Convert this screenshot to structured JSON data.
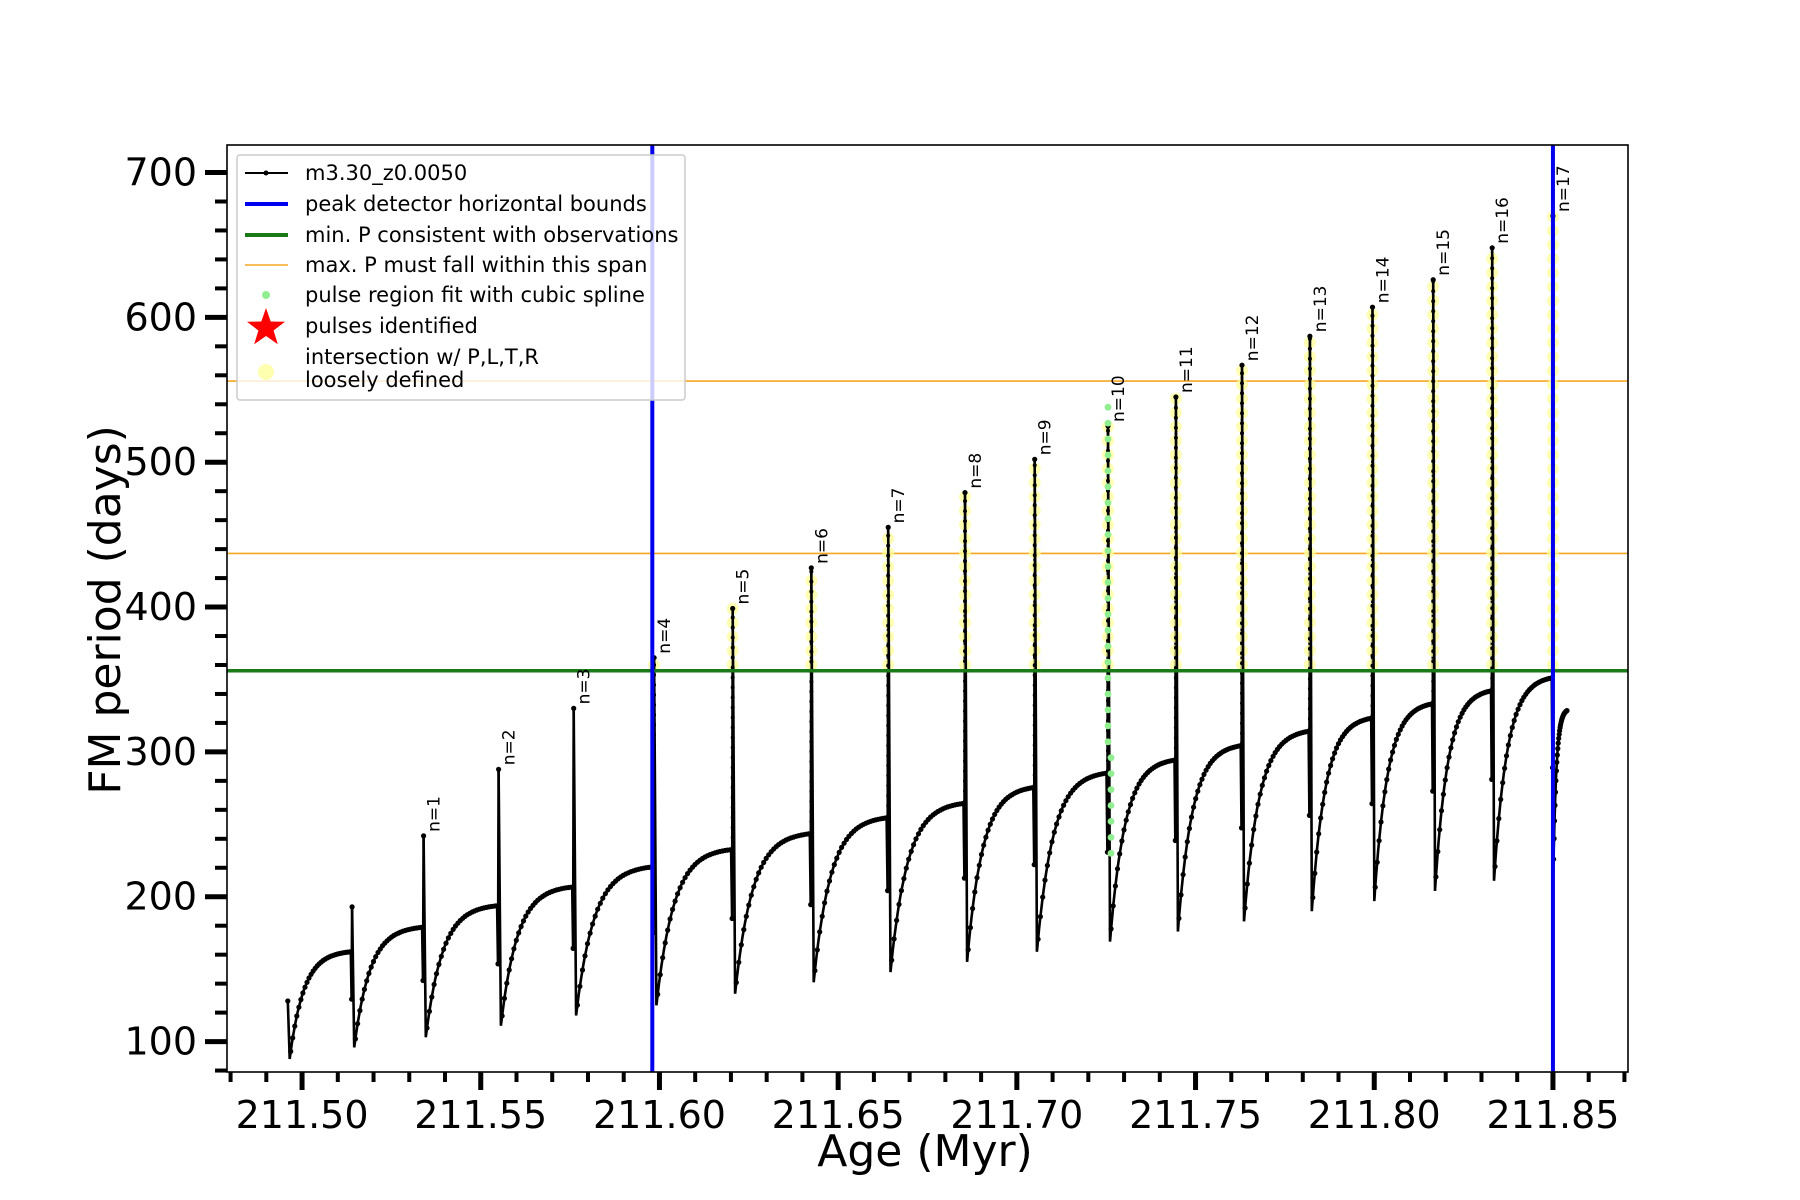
{
  "chart_data": {
    "type": "line",
    "xlabel": "Age (Myr)",
    "ylabel": "FM period (days)",
    "xlim": [
      211.479,
      211.871
    ],
    "ylim": [
      79,
      719
    ],
    "xticks": [
      211.5,
      211.55,
      211.6,
      211.65,
      211.7,
      211.75,
      211.8,
      211.85
    ],
    "xtick_labels": [
      "211.50",
      "211.55",
      "211.60",
      "211.65",
      "211.70",
      "211.75",
      "211.80",
      "211.85"
    ],
    "yticks": [
      100,
      200,
      300,
      400,
      500,
      600,
      700
    ],
    "ytick_labels": [
      "100",
      "200",
      "300",
      "400",
      "500",
      "600",
      "700"
    ],
    "legend_position": "upper-left",
    "legend": [
      {
        "label": "m3.30_z0.0050",
        "style": "line-dot",
        "color": "#000000"
      },
      {
        "label": "peak detector horizontal bounds",
        "style": "line",
        "color": "#0000ee"
      },
      {
        "label": "min. P consistent with observations",
        "style": "line",
        "color": "#1a7a1a"
      },
      {
        "label": "max. P must fall within this span",
        "style": "thin-line",
        "color": "#f5a623"
      },
      {
        "label": "pulse region fit with cubic spline",
        "style": "dot",
        "color": "#90ee90"
      },
      {
        "label": "pulses identified",
        "style": "star",
        "color": "#ff0000"
      },
      {
        "label": "intersection w/ P,L,T,R",
        "label2": "loosely defined",
        "style": "big-dot",
        "color": "#ffffb0"
      }
    ],
    "vlines": [
      211.598,
      211.85
    ],
    "min_period": 356,
    "max_period_span": [
      437,
      556
    ],
    "series_name": "m3.30_z0.0050",
    "cycles": [
      {
        "n": "",
        "start": 211.496,
        "end": 211.514,
        "start_p": 128,
        "min_p": 88,
        "plateau_p": 163,
        "peak_p": 193
      },
      {
        "n": "n=1",
        "start": 211.514,
        "end": 211.534,
        "start_p": 193,
        "min_p": 96,
        "plateau_p": 180,
        "peak_p": 242
      },
      {
        "n": "n=2",
        "start": 211.534,
        "end": 211.555,
        "start_p": 242,
        "min_p": 103,
        "plateau_p": 195,
        "peak_p": 288
      },
      {
        "n": "n=3",
        "start": 211.555,
        "end": 211.576,
        "start_p": 288,
        "min_p": 111,
        "plateau_p": 208,
        "peak_p": 330
      },
      {
        "n": "n=4",
        "start": 211.576,
        "end": 211.5985,
        "start_p": 330,
        "min_p": 118,
        "plateau_p": 222,
        "peak_p": 365
      },
      {
        "n": "n=5",
        "start": 211.5985,
        "end": 211.6205,
        "start_p": 365,
        "min_p": 125,
        "plateau_p": 234,
        "peak_p": 399
      },
      {
        "n": "n=6",
        "start": 211.6205,
        "end": 211.6425,
        "start_p": 399,
        "min_p": 133,
        "plateau_p": 245,
        "peak_p": 427
      },
      {
        "n": "n=7",
        "start": 211.6425,
        "end": 211.664,
        "start_p": 427,
        "min_p": 141,
        "plateau_p": 256,
        "peak_p": 455
      },
      {
        "n": "n=8",
        "start": 211.664,
        "end": 211.6855,
        "start_p": 455,
        "min_p": 148,
        "plateau_p": 266,
        "peak_p": 479
      },
      {
        "n": "n=9",
        "start": 211.6855,
        "end": 211.705,
        "start_p": 479,
        "min_p": 155,
        "plateau_p": 277,
        "peak_p": 502
      },
      {
        "n": "n=10",
        "start": 211.705,
        "end": 211.7255,
        "start_p": 502,
        "min_p": 162,
        "plateau_p": 287,
        "peak_p": 525
      },
      {
        "n": "n=11",
        "start": 211.7255,
        "end": 211.7445,
        "start_p": 525,
        "min_p": 169,
        "plateau_p": 296,
        "peak_p": 545
      },
      {
        "n": "n=12",
        "start": 211.7445,
        "end": 211.763,
        "start_p": 545,
        "min_p": 176,
        "plateau_p": 306,
        "peak_p": 567
      },
      {
        "n": "n=13",
        "start": 211.763,
        "end": 211.782,
        "start_p": 567,
        "min_p": 183,
        "plateau_p": 316,
        "peak_p": 587
      },
      {
        "n": "n=14",
        "start": 211.782,
        "end": 211.7995,
        "start_p": 587,
        "min_p": 190,
        "plateau_p": 325,
        "peak_p": 607
      },
      {
        "n": "n=15",
        "start": 211.7995,
        "end": 211.8165,
        "start_p": 607,
        "min_p": 197,
        "plateau_p": 335,
        "peak_p": 626
      },
      {
        "n": "n=16",
        "start": 211.8165,
        "end": 211.833,
        "start_p": 626,
        "min_p": 204,
        "plateau_p": 344,
        "peak_p": 648
      },
      {
        "n": "n=17",
        "start": 211.833,
        "end": 211.85,
        "start_p": 648,
        "min_p": 211,
        "plateau_p": 353,
        "peak_p": 670
      },
      {
        "n": "",
        "start": 211.85,
        "end": 211.854,
        "start_p": 670,
        "min_p": 218,
        "plateau_p": 330,
        "peak_p": 330,
        "partial": true
      }
    ]
  }
}
